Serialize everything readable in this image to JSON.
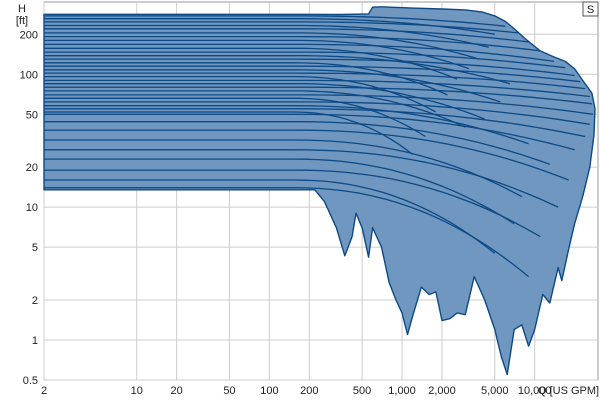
{
  "chart_data": {
    "type": "area",
    "title": "",
    "y_label_top": "H",
    "y_unit": "[ft]",
    "x_label": "Q [US GPM]",
    "x_scale": "log",
    "y_scale": "log",
    "xlim": [
      2,
      30000
    ],
    "ylim": [
      0.5,
      350
    ],
    "grid": true,
    "x_ticks": [
      {
        "v": 2,
        "label": "2"
      },
      {
        "v": 10,
        "label": "10"
      },
      {
        "v": 20,
        "label": "20"
      },
      {
        "v": 50,
        "label": "50"
      },
      {
        "v": 100,
        "label": "100"
      },
      {
        "v": 200,
        "label": "200"
      },
      {
        "v": 500,
        "label": "500"
      },
      {
        "v": 1000,
        "label": "1,000"
      },
      {
        "v": 2000,
        "label": "2,000"
      },
      {
        "v": 5000,
        "label": "5,000"
      },
      {
        "v": 10000,
        "label": "10,000"
      }
    ],
    "y_ticks": [
      {
        "v": 0.5,
        "label": "0.5"
      },
      {
        "v": 1,
        "label": "1"
      },
      {
        "v": 2,
        "label": "2"
      },
      {
        "v": 5,
        "label": "5"
      },
      {
        "v": 10,
        "label": "10"
      },
      {
        "v": 20,
        "label": "20"
      },
      {
        "v": 50,
        "label": "50"
      },
      {
        "v": 100,
        "label": "100"
      },
      {
        "v": 200,
        "label": "200"
      }
    ],
    "fill_color": "#6f97bf",
    "line_color": "#0d4a86",
    "envelope": [
      [
        2,
        13.5
      ],
      [
        220,
        13.5
      ],
      [
        260,
        11
      ],
      [
        320,
        7
      ],
      [
        370,
        4.3
      ],
      [
        420,
        6
      ],
      [
        450,
        9
      ],
      [
        500,
        7
      ],
      [
        560,
        4.2
      ],
      [
        600,
        7
      ],
      [
        700,
        5
      ],
      [
        800,
        2.7
      ],
      [
        900,
        2
      ],
      [
        1000,
        1.6
      ],
      [
        1100,
        1.1
      ],
      [
        1200,
        1.5
      ],
      [
        1400,
        2.5
      ],
      [
        1600,
        2.2
      ],
      [
        1800,
        2.3
      ],
      [
        2000,
        1.4
      ],
      [
        2300,
        1.45
      ],
      [
        2600,
        1.6
      ],
      [
        3000,
        1.55
      ],
      [
        3500,
        3
      ],
      [
        4200,
        2
      ],
      [
        5000,
        1.2
      ],
      [
        5600,
        0.75
      ],
      [
        6200,
        0.55
      ],
      [
        7000,
        1.2
      ],
      [
        8000,
        1.3
      ],
      [
        9000,
        0.9
      ],
      [
        10000,
        1.2
      ],
      [
        11500,
        2.2
      ],
      [
        13000,
        1.9
      ],
      [
        15000,
        3.5
      ],
      [
        16000,
        2.8
      ],
      [
        18000,
        4.8
      ],
      [
        20000,
        7.5
      ],
      [
        23000,
        12
      ],
      [
        26000,
        20
      ],
      [
        28000,
        35
      ],
      [
        28500,
        55
      ],
      [
        27000,
        72
      ],
      [
        23000,
        90
      ],
      [
        20000,
        110
      ],
      [
        17000,
        125
      ],
      [
        14000,
        135
      ],
      [
        11000,
        150
      ],
      [
        8500,
        185
      ],
      [
        7000,
        220
      ],
      [
        6000,
        250
      ],
      [
        5000,
        275
      ],
      [
        4000,
        295
      ],
      [
        3000,
        305
      ],
      [
        2000,
        310
      ],
      [
        1200,
        315
      ],
      [
        700,
        322
      ],
      [
        600,
        320
      ],
      [
        560,
        285
      ],
      [
        350,
        282
      ],
      [
        150,
        283
      ],
      [
        50,
        283
      ],
      [
        2,
        283
      ]
    ],
    "curves": [
      {
        "h0": 275,
        "q_end": 6000,
        "h_end": 230
      },
      {
        "h0": 262,
        "q_end": 5000,
        "h_end": 200
      },
      {
        "h0": 248,
        "q_end": 7500,
        "h_end": 205
      },
      {
        "h0": 233,
        "q_end": 4500,
        "h_end": 160
      },
      {
        "h0": 220,
        "q_end": 9000,
        "h_end": 175
      },
      {
        "h0": 205,
        "q_end": 3800,
        "h_end": 130
      },
      {
        "h0": 192,
        "q_end": 11000,
        "h_end": 150
      },
      {
        "h0": 180,
        "q_end": 3200,
        "h_end": 110
      },
      {
        "h0": 168,
        "q_end": 14000,
        "h_end": 125
      },
      {
        "h0": 157,
        "q_end": 2600,
        "h_end": 92
      },
      {
        "h0": 147,
        "q_end": 17000,
        "h_end": 112
      },
      {
        "h0": 138,
        "q_end": 6500,
        "h_end": 85
      },
      {
        "h0": 130,
        "q_end": 20000,
        "h_end": 98
      },
      {
        "h0": 122,
        "q_end": 2200,
        "h_end": 70
      },
      {
        "h0": 115,
        "q_end": 22000,
        "h_end": 88
      },
      {
        "h0": 108,
        "q_end": 5500,
        "h_end": 62
      },
      {
        "h0": 102,
        "q_end": 24000,
        "h_end": 78
      },
      {
        "h0": 96,
        "q_end": 1800,
        "h_end": 52
      },
      {
        "h0": 90,
        "q_end": 26000,
        "h_end": 68
      },
      {
        "h0": 85,
        "q_end": 4200,
        "h_end": 46
      },
      {
        "h0": 80,
        "q_end": 27000,
        "h_end": 60
      },
      {
        "h0": 75,
        "q_end": 3000,
        "h_end": 40
      },
      {
        "h0": 70,
        "q_end": 27500,
        "h_end": 50
      },
      {
        "h0": 66,
        "q_end": 1500,
        "h_end": 34
      },
      {
        "h0": 62,
        "q_end": 26000,
        "h_end": 42
      },
      {
        "h0": 58,
        "q_end": 9000,
        "h_end": 30
      },
      {
        "h0": 55,
        "q_end": 24000,
        "h_end": 34
      },
      {
        "h0": 52,
        "q_end": 1200,
        "h_end": 25
      },
      {
        "h0": 50,
        "q_end": 20000,
        "h_end": 27
      },
      {
        "h0": 44,
        "q_end": 13000,
        "h_end": 21
      },
      {
        "h0": 38,
        "q_end": 18000,
        "h_end": 16
      },
      {
        "h0": 32,
        "q_end": 8000,
        "h_end": 12
      },
      {
        "h0": 27,
        "q_end": 15000,
        "h_end": 10
      },
      {
        "h0": 23,
        "q_end": 7000,
        "h_end": 7.5
      },
      {
        "h0": 19,
        "q_end": 11000,
        "h_end": 6
      },
      {
        "h0": 16,
        "q_end": 5000,
        "h_end": 4.5
      },
      {
        "h0": 14,
        "q_end": 9000,
        "h_end": 3
      }
    ]
  },
  "controls": {
    "s_button_label": "S"
  }
}
